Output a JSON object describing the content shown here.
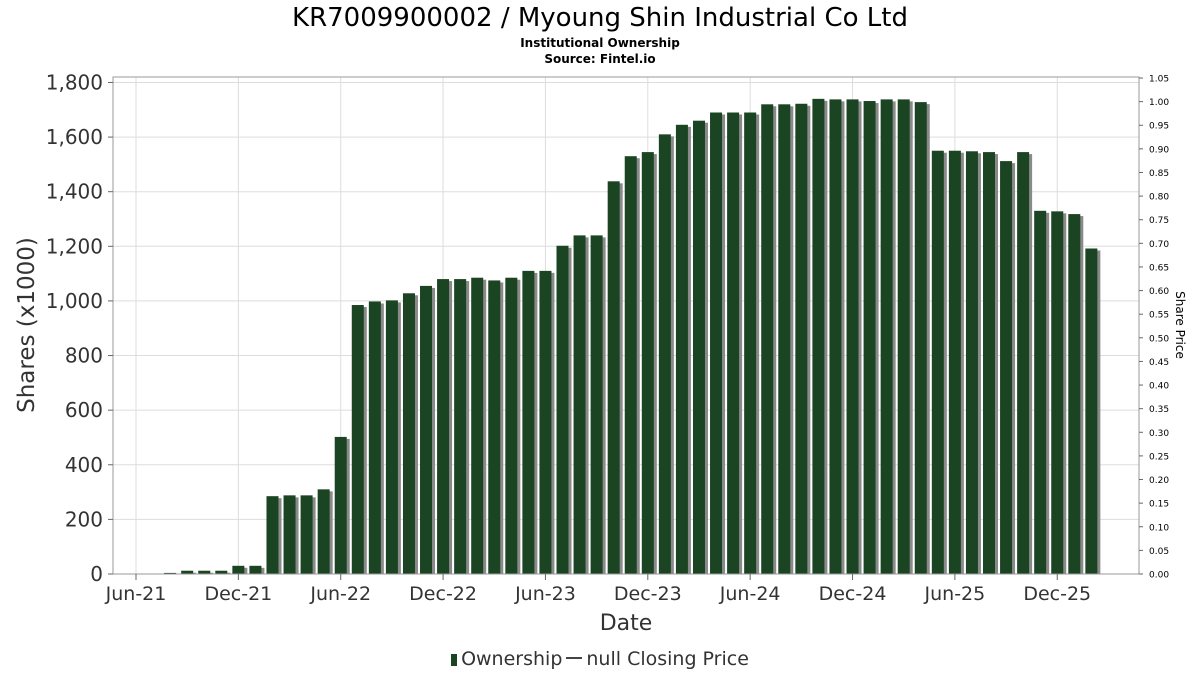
{
  "header": {
    "title": "KR7009900002 / Myoung Shin Industrial Co Ltd",
    "subtitle": "Institutional Ownership",
    "source": "Source: Fintel.io"
  },
  "legend": {
    "ownership": "Ownership",
    "price": "null Closing Price"
  },
  "colors": {
    "bar": "#1b4422",
    "bar_shadow": "#8a8a8a",
    "grid": "#dddddd",
    "axis_text": "#333333"
  },
  "chart_data": {
    "type": "bar",
    "title": "KR7009900002 / Myoung Shin Industrial Co Ltd",
    "xlabel": "Date",
    "ylabel": "Shares (x1000)",
    "y2label": "Share Price",
    "ylim": [
      0,
      1820
    ],
    "y2lim": [
      0,
      1.05
    ],
    "yticks": [
      "0",
      "200",
      "400",
      "600",
      "800",
      "1,000",
      "1,200",
      "1,400",
      "1,600",
      "1,800"
    ],
    "y2ticks": [
      "0.00",
      "0.05",
      "0.10",
      "0.15",
      "0.20",
      "0.25",
      "0.30",
      "0.35",
      "0.40",
      "0.45",
      "0.50",
      "0.55",
      "0.60",
      "0.65",
      "0.70",
      "0.75",
      "0.80",
      "0.85",
      "0.90",
      "0.95",
      "1.00",
      "1.05"
    ],
    "xticks": [
      "Jun-21",
      "Dec-21",
      "Jun-22",
      "Dec-22",
      "Jun-23",
      "Dec-23",
      "Jun-24",
      "Dec-24",
      "Jun-25",
      "Dec-25"
    ],
    "grid": true,
    "legend_position": "bottom",
    "series": [
      {
        "name": "Ownership",
        "values": [
          0,
          0,
          4,
          12,
          12,
          12,
          30,
          30,
          285,
          288,
          288,
          310,
          502,
          985,
          998,
          1002,
          1028,
          1055,
          1080,
          1080,
          1085,
          1075,
          1085,
          1110,
          1110,
          1202,
          1240,
          1240,
          1438,
          1530,
          1545,
          1610,
          1645,
          1660,
          1690,
          1690,
          1690,
          1720,
          1720,
          1722,
          1740,
          1738,
          1738,
          1732,
          1738,
          1738,
          1728,
          1550,
          1550,
          1548,
          1545,
          1512,
          1545,
          1330,
          1328,
          1318,
          1192
        ]
      }
    ]
  }
}
